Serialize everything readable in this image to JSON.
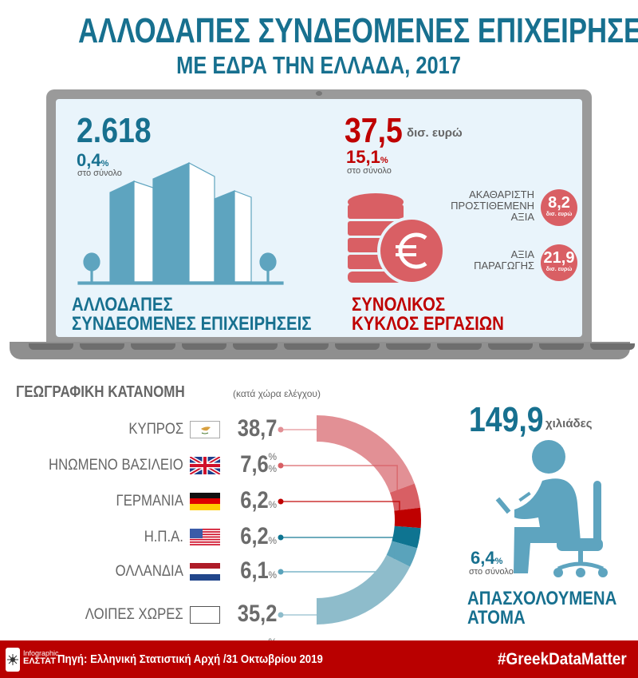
{
  "header": {
    "title_line1": "ΑΛΛΟΔΑΠΕΣ ΣΥΝΔΕΟΜΕΝΕΣ ΕΠΙΧΕΙΡΗΣΕΙΣ",
    "title_line2": "ΜΕ ΕΔΡΑ ΤΗΝ ΕΛΛΑΔΑ, 2017"
  },
  "enterprises": {
    "value": "2.618",
    "share": "0,4",
    "share_unit": "%",
    "share_label": "στο σύνολο",
    "caption_line1": "ΑΛΛΟΔΑΠΕΣ",
    "caption_line2": "ΣΥΝΔΕΟΜΕΝΕΣ ΕΠΙΧΕΙΡΗΣΕΙΣ"
  },
  "turnover": {
    "value": "37,5",
    "unit": "δισ. ευρώ",
    "share": "15,1",
    "share_unit": "%",
    "share_label": "στο σύνολο",
    "caption_line1": "ΣΥΝΟΛΙΚΟΣ",
    "caption_line2": "ΚΥΚΛΟΣ ΕΡΓΑΣΙΩΝ",
    "gva": {
      "label_lines": [
        "ΑΚΑΘΑΡΙΣΤΗ",
        "ΠΡΟΣΤΙΘΕΜΕΝΗ",
        "ΑΞΙΑ"
      ],
      "value": "8,2",
      "unit": "δισ. ευρώ"
    },
    "production": {
      "label_lines": [
        "ΑΞΙΑ",
        "ΠΑΡΑΓΩΓΗΣ"
      ],
      "value": "21,9",
      "unit": "δισ. ευρώ"
    }
  },
  "geo": {
    "title": "ΓΕΩΓΡΑΦΙΚΗ ΚΑΤΑΝΟΜΗ",
    "subtitle": "(κατά χώρα ελέγχου)",
    "pct_unit": "%"
  },
  "chart_data": {
    "type": "pie",
    "variant": "half-donut",
    "categories": [
      "ΚΥΠΡΟΣ",
      "ΗΝΩΜΕΝΟ ΒΑΣΙΛΕΙΟ",
      "ΓΕΡΜΑΝΙΑ",
      "Η.Π.Α.",
      "ΟΛΛΑΝΔΙΑ",
      "ΛΟΙΠΕΣ ΧΩΡΕΣ"
    ],
    "values": [
      38.7,
      7.6,
      6.2,
      6.2,
      6.1,
      35.2
    ],
    "value_labels": [
      "38,7",
      "7,6",
      "6,2",
      "6,2",
      "6,1",
      "35,2"
    ],
    "colors": [
      "#e29095",
      "#d85f64",
      "#bf0000",
      "#0e7491",
      "#5aa3bb",
      "#8ebccb"
    ],
    "flags": [
      "cyprus",
      "united-kingdom",
      "germany",
      "usa",
      "netherlands",
      "blank"
    ]
  },
  "employment": {
    "value": "149,9",
    "unit": "χιλιάδες",
    "share": "6,4",
    "share_unit": "%",
    "share_label": "στο σύνολο",
    "caption_line1": "ΑΠΑΣΧΟΛΟΥΜΕΝΑ",
    "caption_line2": "ΑΤΟΜΑ"
  },
  "footer": {
    "logo_line1": "Infographic",
    "logo_line2": "ΕΛΣΤΑΤ",
    "source": "Πηγή: Ελληνική Στατιστική Αρχή /31 Οκτωβρίου 2019",
    "hashtag": "#GreekDataMatter"
  },
  "colors": {
    "teal": "#17708f",
    "red": "#bf0000",
    "footer": "#b90000",
    "screen": "#e9f4fb"
  }
}
